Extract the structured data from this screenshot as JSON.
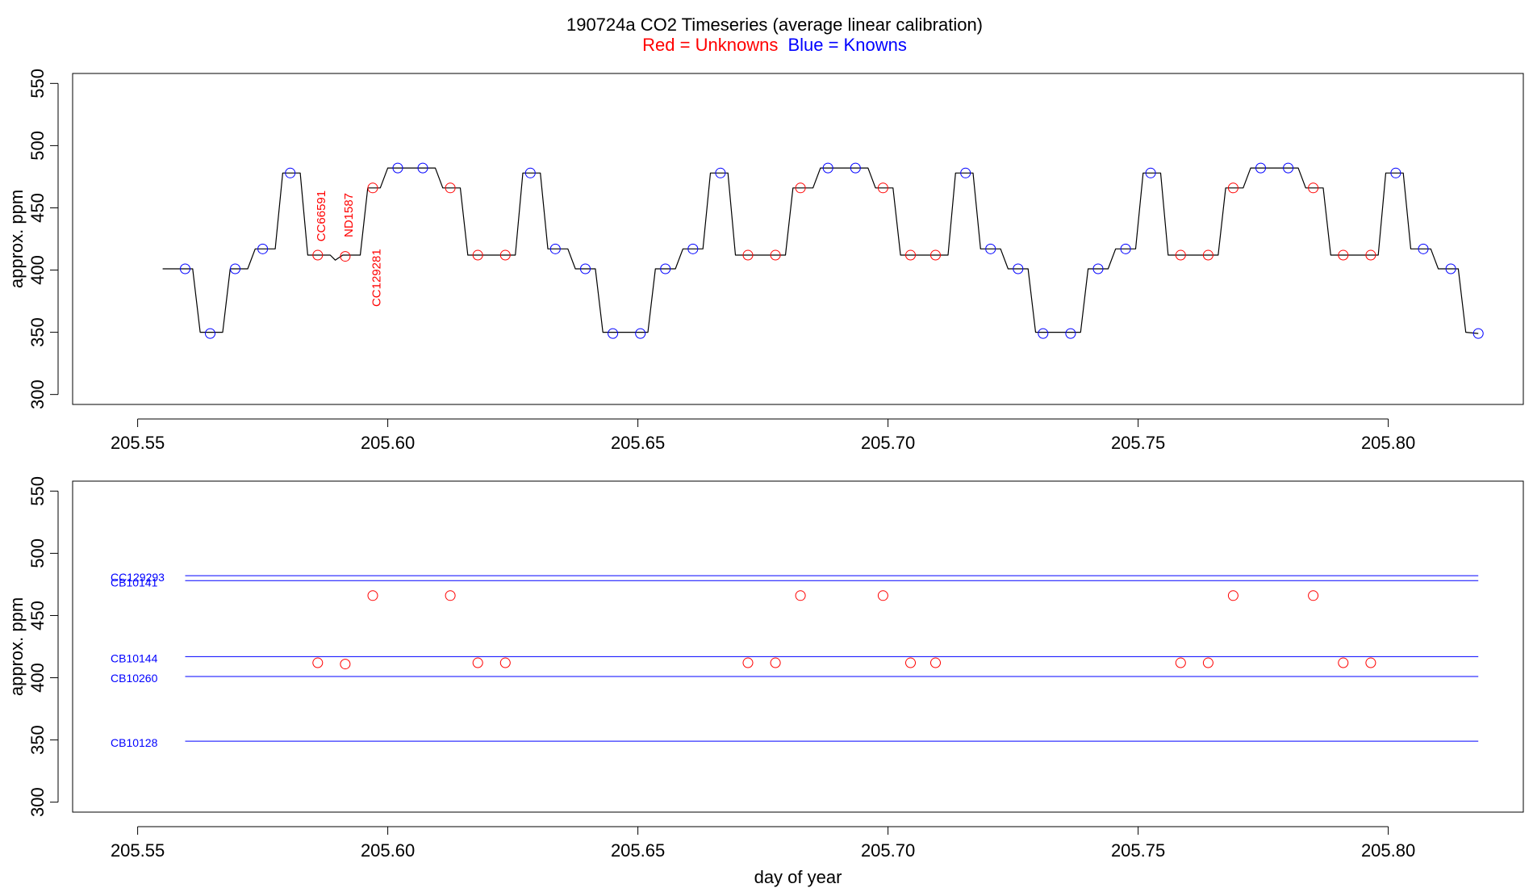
{
  "title": {
    "main": "190724a   CO2 Timeseries (average linear calibration)",
    "legend_red": "Red = Unknowns",
    "legend_blue": "Blue = Knowns"
  },
  "colors": {
    "unknowns": "#ff0000",
    "knowns": "#0000ff",
    "trace": "#000000"
  },
  "chart_data": [
    {
      "type": "line",
      "panel": "top",
      "ylabel": "approx. ppm",
      "xlabel": "",
      "xlim": [
        205.537,
        205.827
      ],
      "ylim": [
        292,
        558
      ],
      "xticks": [
        "205.55",
        "205.60",
        "205.65",
        "205.70",
        "205.75",
        "205.80"
      ],
      "yticks": [
        "300",
        "350",
        "400",
        "450",
        "500",
        "550"
      ],
      "trace": [
        [
          205.555,
          401
        ],
        [
          205.561,
          401
        ],
        [
          205.5625,
          350
        ],
        [
          205.567,
          350
        ],
        [
          205.5685,
          401
        ],
        [
          205.572,
          401
        ],
        [
          205.5735,
          417
        ],
        [
          205.5775,
          417
        ],
        [
          205.579,
          478
        ],
        [
          205.5825,
          478
        ],
        [
          205.584,
          412
        ],
        [
          205.5885,
          412
        ],
        [
          205.5895,
          408
        ],
        [
          205.591,
          412
        ],
        [
          205.5945,
          412
        ],
        [
          205.596,
          466
        ],
        [
          205.5985,
          466
        ],
        [
          205.6,
          482
        ],
        [
          205.6095,
          482
        ],
        [
          205.611,
          466
        ],
        [
          205.6145,
          466
        ],
        [
          205.616,
          412
        ],
        [
          205.6255,
          412
        ],
        [
          205.627,
          478
        ],
        [
          205.6305,
          478
        ],
        [
          205.632,
          417
        ],
        [
          205.636,
          417
        ],
        [
          205.6375,
          401
        ],
        [
          205.6415,
          401
        ],
        [
          205.643,
          350
        ],
        [
          205.652,
          350
        ],
        [
          205.6535,
          401
        ],
        [
          205.6575,
          401
        ],
        [
          205.659,
          417
        ],
        [
          205.663,
          417
        ],
        [
          205.6645,
          478
        ],
        [
          205.668,
          478
        ],
        [
          205.6695,
          412
        ],
        [
          205.6795,
          412
        ],
        [
          205.681,
          466
        ],
        [
          205.685,
          466
        ],
        [
          205.6865,
          482
        ],
        [
          205.696,
          482
        ],
        [
          205.6975,
          466
        ],
        [
          205.701,
          466
        ],
        [
          205.7025,
          412
        ],
        [
          205.712,
          412
        ],
        [
          205.7135,
          478
        ],
        [
          205.717,
          478
        ],
        [
          205.7185,
          417
        ],
        [
          205.7225,
          417
        ],
        [
          205.724,
          401
        ],
        [
          205.728,
          401
        ],
        [
          205.7295,
          350
        ],
        [
          205.7385,
          350
        ],
        [
          205.74,
          401
        ],
        [
          205.744,
          401
        ],
        [
          205.7455,
          417
        ],
        [
          205.7495,
          417
        ],
        [
          205.751,
          478
        ],
        [
          205.7545,
          478
        ],
        [
          205.756,
          412
        ],
        [
          205.766,
          412
        ],
        [
          205.7675,
          466
        ],
        [
          205.771,
          466
        ],
        [
          205.7725,
          482
        ],
        [
          205.782,
          482
        ],
        [
          205.7835,
          466
        ],
        [
          205.787,
          466
        ],
        [
          205.7885,
          412
        ],
        [
          205.798,
          412
        ],
        [
          205.7995,
          478
        ],
        [
          205.803,
          478
        ],
        [
          205.8045,
          417
        ],
        [
          205.8085,
          417
        ],
        [
          205.81,
          401
        ],
        [
          205.814,
          401
        ],
        [
          205.8155,
          350
        ],
        [
          205.818,
          349
        ]
      ],
      "knowns": [
        [
          205.5595,
          401
        ],
        [
          205.5645,
          349
        ],
        [
          205.5695,
          401
        ],
        [
          205.575,
          417
        ],
        [
          205.5805,
          478
        ],
        [
          205.602,
          482
        ],
        [
          205.607,
          482
        ],
        [
          205.6285,
          478
        ],
        [
          205.6335,
          417
        ],
        [
          205.6395,
          401
        ],
        [
          205.645,
          349
        ],
        [
          205.6505,
          349
        ],
        [
          205.6555,
          401
        ],
        [
          205.661,
          417
        ],
        [
          205.6665,
          478
        ],
        [
          205.688,
          482
        ],
        [
          205.6935,
          482
        ],
        [
          205.7155,
          478
        ],
        [
          205.7205,
          417
        ],
        [
          205.726,
          401
        ],
        [
          205.731,
          349
        ],
        [
          205.7365,
          349
        ],
        [
          205.742,
          401
        ],
        [
          205.7475,
          417
        ],
        [
          205.7525,
          478
        ],
        [
          205.7745,
          482
        ],
        [
          205.78,
          482
        ],
        [
          205.8015,
          478
        ],
        [
          205.807,
          417
        ],
        [
          205.8125,
          401
        ],
        [
          205.818,
          349
        ]
      ],
      "unknowns": [
        [
          205.586,
          412
        ],
        [
          205.5915,
          411
        ],
        [
          205.597,
          466
        ],
        [
          205.6125,
          466
        ],
        [
          205.618,
          412
        ],
        [
          205.6235,
          412
        ],
        [
          205.672,
          412
        ],
        [
          205.6775,
          412
        ],
        [
          205.6825,
          466
        ],
        [
          205.699,
          466
        ],
        [
          205.7045,
          412
        ],
        [
          205.7095,
          412
        ],
        [
          205.7585,
          412
        ],
        [
          205.764,
          412
        ],
        [
          205.769,
          466
        ],
        [
          205.785,
          466
        ],
        [
          205.791,
          412
        ],
        [
          205.7965,
          412
        ]
      ],
      "annotations": [
        {
          "text": "CC66591",
          "x": 205.5867,
          "y": 464
        },
        {
          "text": "ND1587",
          "x": 205.5922,
          "y": 462
        },
        {
          "text": "CC129281",
          "x": 205.5977,
          "y": 417
        }
      ]
    },
    {
      "type": "scatter",
      "panel": "bottom",
      "ylabel": "approx. ppm",
      "xlabel": "day of year",
      "xlim": [
        205.537,
        205.827
      ],
      "ylim": [
        292,
        558
      ],
      "xticks": [
        "205.55",
        "205.60",
        "205.65",
        "205.70",
        "205.75",
        "205.80"
      ],
      "yticks": [
        "300",
        "350",
        "400",
        "450",
        "500",
        "550"
      ],
      "known_lines": [
        {
          "name": "CC129293",
          "value": 482
        },
        {
          "name": "CB10141",
          "value": 478
        },
        {
          "name": "CB10144",
          "value": 417
        },
        {
          "name": "CB10260",
          "value": 401
        },
        {
          "name": "CB10128",
          "value": 349
        }
      ],
      "line_xrange": [
        205.5595,
        205.818
      ],
      "unknowns": [
        [
          205.586,
          412
        ],
        [
          205.5915,
          411
        ],
        [
          205.597,
          466
        ],
        [
          205.6125,
          466
        ],
        [
          205.618,
          412
        ],
        [
          205.6235,
          412
        ],
        [
          205.672,
          412
        ],
        [
          205.6775,
          412
        ],
        [
          205.6825,
          466
        ],
        [
          205.699,
          466
        ],
        [
          205.7045,
          412
        ],
        [
          205.7095,
          412
        ],
        [
          205.7585,
          412
        ],
        [
          205.764,
          412
        ],
        [
          205.769,
          466
        ],
        [
          205.785,
          466
        ],
        [
          205.791,
          412
        ],
        [
          205.7965,
          412
        ]
      ]
    }
  ]
}
